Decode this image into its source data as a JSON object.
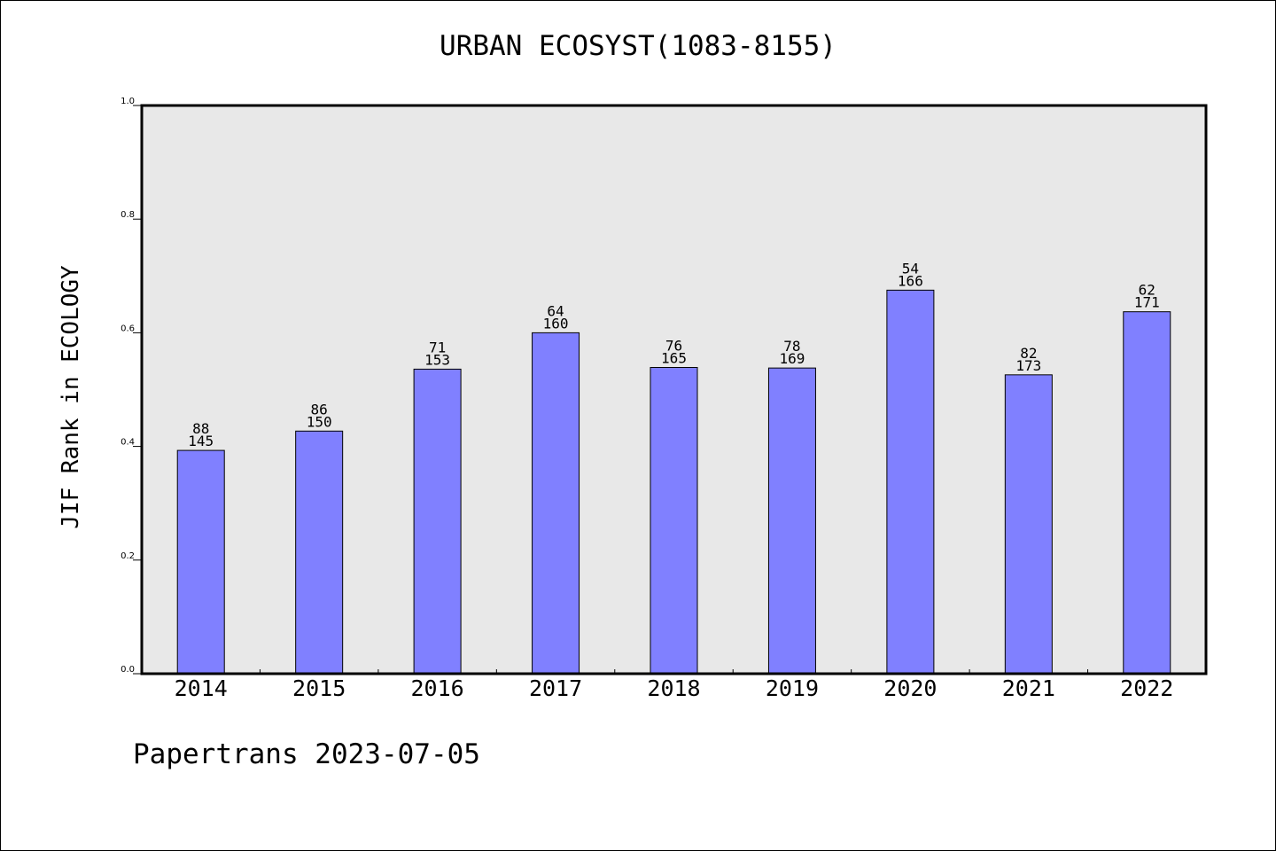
{
  "chart_data": {
    "type": "bar",
    "title": "URBAN ECOSYST(1083-8155)",
    "xlabel": "",
    "ylabel": "JIF Rank in ECOLOGY",
    "categories": [
      "2014",
      "2015",
      "2016",
      "2017",
      "2018",
      "2019",
      "2020",
      "2021",
      "2022"
    ],
    "values": [
      0.393,
      0.427,
      0.536,
      0.6,
      0.539,
      0.538,
      0.675,
      0.526,
      0.637
    ],
    "rank": [
      "88",
      "86",
      "71",
      "64",
      "76",
      "78",
      "54",
      "82",
      "62"
    ],
    "total": [
      "145",
      "150",
      "153",
      "160",
      "165",
      "169",
      "166",
      "173",
      "171"
    ],
    "ylim": [
      0,
      1.0
    ],
    "yticks": [
      "0.0",
      "0.2",
      "0.4",
      "0.6",
      "0.8",
      "1.0"
    ],
    "bar_color": "#8080ff",
    "plot_background": "#e8e8e8",
    "grid": false,
    "legend": "none"
  },
  "footer": "Papertrans 2023-07-05"
}
